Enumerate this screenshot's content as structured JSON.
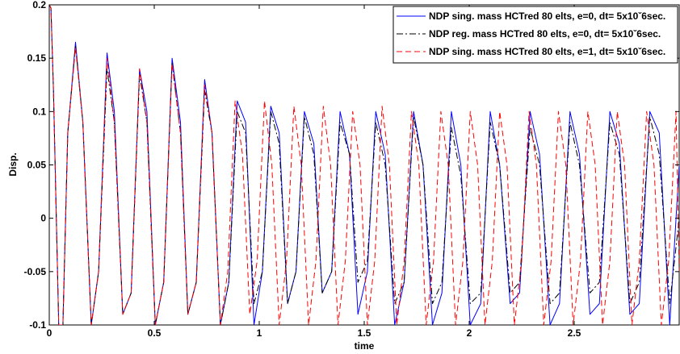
{
  "chart_data": {
    "type": "line",
    "title": "",
    "xlabel": "time",
    "ylabel": "Disp.",
    "xlim": [
      0,
      3
    ],
    "ylim": [
      -0.1,
      0.2
    ],
    "xticks": [
      0,
      0.5,
      1,
      1.5,
      2,
      2.5
    ],
    "xtick_labels": [
      "0",
      "0.5",
      "1",
      "1.5",
      "2",
      "2.5"
    ],
    "yticks": [
      -0.1,
      -0.05,
      0,
      0.05,
      0.1,
      0.15,
      0.2
    ],
    "ytick_labels": [
      "-0.1",
      "-0.05",
      "0",
      "0.05",
      "0.1",
      "0.15",
      "0.2"
    ],
    "grid": false,
    "legend_position": "top-right",
    "series": [
      {
        "name": "NDP sing. mass HCTred 80 elts, e=0, dt= 5x10ˇ6sec.",
        "color": "#0000ff",
        "line_style": "solid",
        "x": [
          0,
          0.008,
          0.02,
          0.045,
          0.065,
          0.088,
          0.125,
          0.16,
          0.2,
          0.235,
          0.275,
          0.31,
          0.35,
          0.39,
          0.43,
          0.465,
          0.505,
          0.545,
          0.585,
          0.625,
          0.66,
          0.7,
          0.74,
          0.775,
          0.815,
          0.855,
          0.895,
          0.935,
          0.975,
          1.015,
          1.055,
          1.095,
          1.135,
          1.175,
          1.215,
          1.26,
          1.3,
          1.345,
          1.385,
          1.43,
          1.47,
          1.515,
          1.555,
          1.6,
          1.645,
          1.69,
          1.735,
          1.78,
          1.825,
          1.87,
          1.915,
          1.96,
          2.005,
          2.055,
          2.1,
          2.145,
          2.195,
          2.24,
          2.29,
          2.335,
          2.385,
          2.43,
          2.48,
          2.525,
          2.575,
          2.62,
          2.67,
          2.715,
          2.765,
          2.81,
          2.86,
          2.905,
          2.955,
          3.0
        ],
        "y": [
          0.2,
          0.197,
          0.12,
          -0.1,
          -0.1,
          0.08,
          0.165,
          0.09,
          -0.1,
          -0.05,
          0.155,
          0.1,
          -0.09,
          -0.07,
          0.14,
          0.1,
          -0.1,
          -0.06,
          0.15,
          0.09,
          -0.09,
          -0.06,
          0.13,
          0.08,
          -0.1,
          -0.06,
          0.11,
          0.09,
          -0.1,
          -0.05,
          0.105,
          0.08,
          -0.08,
          -0.05,
          0.1,
          0.07,
          -0.07,
          -0.05,
          0.1,
          0.06,
          -0.09,
          -0.05,
          0.1,
          0.06,
          -0.1,
          -0.06,
          0.1,
          0.05,
          -0.1,
          -0.07,
          0.1,
          0.05,
          -0.1,
          -0.08,
          0.1,
          0.05,
          -0.08,
          -0.07,
          0.1,
          0.06,
          -0.1,
          -0.08,
          0.1,
          0.06,
          -0.09,
          -0.08,
          0.1,
          0.07,
          -0.09,
          -0.08,
          0.1,
          0.08,
          -0.1,
          0.05
        ]
      },
      {
        "name": "NDP reg. mass HCTred 80 elts, e=0, dt= 5x10ˇ6sec.",
        "color": "#000000",
        "line_style": "dashdot",
        "x": [
          0,
          0.008,
          0.02,
          0.045,
          0.065,
          0.088,
          0.125,
          0.16,
          0.2,
          0.235,
          0.275,
          0.31,
          0.35,
          0.39,
          0.43,
          0.465,
          0.505,
          0.545,
          0.585,
          0.625,
          0.66,
          0.7,
          0.74,
          0.775,
          0.815,
          0.855,
          0.895,
          0.935,
          0.975,
          1.015,
          1.055,
          1.095,
          1.135,
          1.175,
          1.215,
          1.26,
          1.3,
          1.345,
          1.385,
          1.43,
          1.47,
          1.515,
          1.555,
          1.6,
          1.645,
          1.69,
          1.735,
          1.78,
          1.825,
          1.87,
          1.915,
          1.96,
          2.005,
          2.055,
          2.1,
          2.145,
          2.195,
          2.24,
          2.29,
          2.335,
          2.385,
          2.43,
          2.48,
          2.525,
          2.575,
          2.62,
          2.67,
          2.715,
          2.765,
          2.81,
          2.86,
          2.905,
          2.955,
          3.0
        ],
        "y": [
          0.2,
          0.197,
          0.12,
          -0.1,
          -0.1,
          0.08,
          0.162,
          0.09,
          -0.1,
          -0.05,
          0.14,
          0.09,
          -0.09,
          -0.07,
          0.135,
          0.09,
          -0.1,
          -0.06,
          0.145,
          0.08,
          -0.09,
          -0.06,
          0.12,
          0.08,
          -0.1,
          -0.06,
          0.1,
          0.08,
          -0.08,
          -0.05,
          0.1,
          0.07,
          -0.08,
          -0.05,
          0.095,
          0.06,
          -0.07,
          -0.05,
          0.09,
          0.06,
          -0.06,
          -0.04,
          0.09,
          0.05,
          -0.08,
          -0.06,
          0.095,
          0.05,
          -0.08,
          -0.06,
          0.085,
          0.04,
          -0.08,
          -0.07,
          0.09,
          0.05,
          -0.07,
          -0.06,
          0.085,
          0.05,
          -0.08,
          -0.07,
          0.09,
          0.05,
          -0.07,
          -0.06,
          0.09,
          0.06,
          -0.08,
          -0.06,
          0.095,
          0.06,
          -0.08,
          0.0
        ]
      },
      {
        "name": "NDP sing. mass HCTred 80 elts, e=1, dt= 5x10ˇ6sec.",
        "color": "#ff0000",
        "line_style": "dashed",
        "x": [
          0,
          0.008,
          0.02,
          0.045,
          0.065,
          0.088,
          0.125,
          0.16,
          0.2,
          0.235,
          0.275,
          0.31,
          0.35,
          0.39,
          0.43,
          0.465,
          0.505,
          0.545,
          0.585,
          0.625,
          0.66,
          0.7,
          0.74,
          0.775,
          0.815,
          0.85,
          0.885,
          0.92,
          0.955,
          0.99,
          1.025,
          1.06,
          1.095,
          1.13,
          1.165,
          1.2,
          1.235,
          1.27,
          1.305,
          1.34,
          1.375,
          1.41,
          1.445,
          1.48,
          1.515,
          1.55,
          1.585,
          1.62,
          1.655,
          1.69,
          1.725,
          1.76,
          1.795,
          1.83,
          1.865,
          1.9,
          1.935,
          1.97,
          2.005,
          2.04,
          2.075,
          2.11,
          2.145,
          2.18,
          2.215,
          2.25,
          2.285,
          2.32,
          2.355,
          2.39,
          2.425,
          2.46,
          2.495,
          2.53,
          2.565,
          2.6,
          2.635,
          2.67,
          2.705,
          2.74,
          2.775,
          2.81,
          2.845,
          2.88,
          2.915,
          2.95,
          2.985,
          3.0
        ],
        "y": [
          0.2,
          0.197,
          0.12,
          -0.1,
          -0.1,
          0.08,
          0.16,
          0.09,
          -0.1,
          -0.05,
          0.15,
          0.09,
          -0.09,
          -0.07,
          0.14,
          0.09,
          -0.1,
          -0.06,
          0.145,
          0.08,
          -0.09,
          -0.06,
          0.125,
          0.08,
          -0.1,
          -0.05,
          0.11,
          0.06,
          -0.09,
          -0.04,
          0.11,
          0.05,
          -0.1,
          -0.04,
          0.105,
          0.05,
          -0.1,
          -0.04,
          0.105,
          0.05,
          -0.1,
          -0.04,
          0.1,
          0.05,
          -0.1,
          -0.04,
          0.105,
          0.05,
          -0.1,
          -0.04,
          0.1,
          0.05,
          -0.1,
          -0.04,
          0.1,
          0.05,
          -0.1,
          -0.04,
          0.1,
          0.05,
          -0.1,
          -0.04,
          0.1,
          0.05,
          -0.1,
          -0.04,
          0.1,
          0.05,
          -0.1,
          -0.04,
          0.1,
          0.05,
          -0.1,
          -0.04,
          0.1,
          0.05,
          -0.1,
          -0.04,
          0.1,
          0.05,
          -0.1,
          -0.04,
          0.1,
          0.05,
          -0.1,
          -0.04,
          0.1,
          -0.05
        ]
      }
    ]
  }
}
